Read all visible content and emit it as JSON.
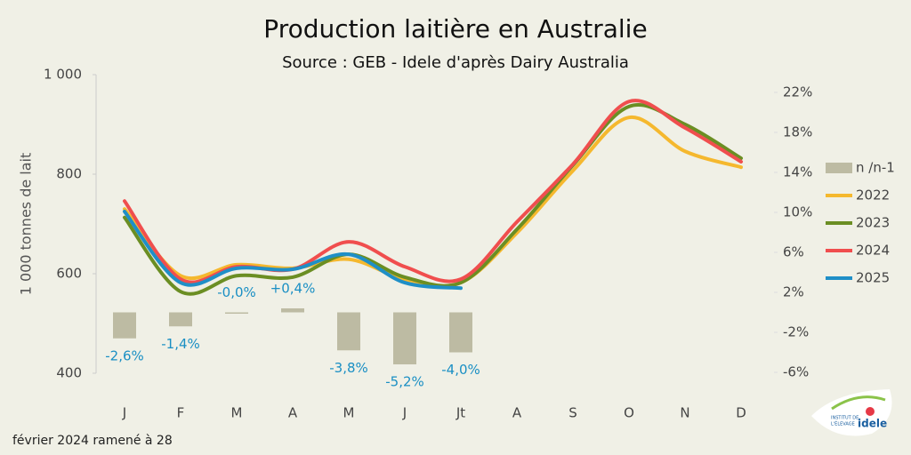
{
  "chart_data": {
    "type": "line",
    "title": "Production laitière en Australie",
    "subtitle": "Source : GEB - Idele d'après Dairy Australia",
    "y_label": "1 000 tonnes de lait",
    "footnote": "février 2024 ramené à 28",
    "categories": [
      "J",
      "F",
      "M",
      "A",
      "M",
      "J",
      "Jt",
      "A",
      "S",
      "O",
      "N",
      "D"
    ],
    "ylim": [
      400,
      1000
    ],
    "yticks": [
      400,
      600,
      800,
      {
        "value": 1000,
        "label": "1 000"
      }
    ],
    "y2lim": [
      -6,
      22
    ],
    "y2ticks": [
      {
        "value": -6,
        "label": "-6%"
      },
      {
        "value": -2,
        "label": "-2%"
      },
      {
        "value": 2,
        "label": "2%"
      },
      {
        "value": 6,
        "label": "6%"
      },
      {
        "value": 10,
        "label": "10%"
      },
      {
        "value": 14,
        "label": "14%"
      },
      {
        "value": 18,
        "label": "18%"
      },
      {
        "value": 22,
        "label": "22%"
      }
    ],
    "bars": {
      "name": "n /n-1",
      "color": "#bdbba3",
      "axis": "y2",
      "values": [
        -2.6,
        -1.4,
        0,
        0.4,
        -3.8,
        -5.2,
        -4.0
      ],
      "value_labels": [
        "-2,6%",
        "-1,4%",
        "-0,0%",
        "+0,4%",
        "-3,8%",
        "-5,2%",
        "-4,0%"
      ]
    },
    "series": [
      {
        "name": "2022",
        "color": "#f5b82e",
        "values": [
          730,
          596,
          618,
          611,
          629,
          589,
          582,
          682,
          807,
          914,
          846,
          814
        ]
      },
      {
        "name": "2023",
        "color": "#6b8e23",
        "values": [
          713,
          564,
          596,
          593,
          639,
          593,
          582,
          689,
          818,
          936,
          900,
          832
        ]
      },
      {
        "name": "2024",
        "color": "#f04e4e",
        "values": [
          746,
          589,
          614,
          609,
          664,
          614,
          589,
          704,
          820,
          946,
          893,
          825
        ]
      },
      {
        "name": "2025",
        "color": "#1f8fc7",
        "values": [
          725,
          582,
          611,
          609,
          639,
          582,
          571,
          null,
          null,
          null,
          null,
          null
        ]
      }
    ],
    "logo": {
      "line1": "INSTITUT DE",
      "line2": "L'ÉLEVAGE",
      "brand": "idele"
    }
  }
}
